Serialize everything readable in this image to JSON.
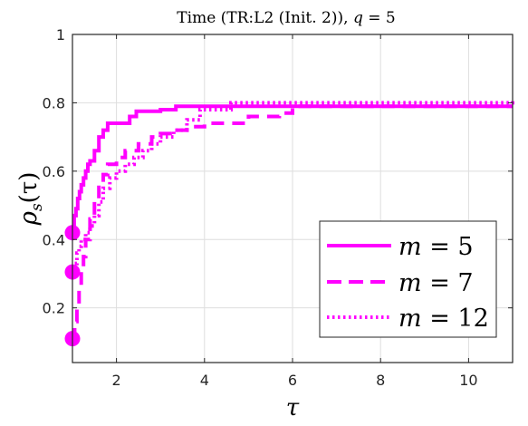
{
  "chart_data": {
    "type": "line",
    "title_parts": {
      "prefix": "Time (TR:L2 (Init. 2)), ",
      "var": "q",
      "suffix": " = 5"
    },
    "xlabel": "τ",
    "ylabel_parts": {
      "base": "ρ",
      "sub": "s",
      "arg": "(τ)"
    },
    "xlim": [
      1,
      11
    ],
    "ylim": [
      0.04,
      1.0
    ],
    "xticks": [
      2,
      4,
      6,
      8,
      10
    ],
    "xtick_labels": [
      "2",
      "4",
      "6",
      "8",
      "10"
    ],
    "yticks": [
      0.2,
      0.4,
      0.6,
      0.8,
      1.0
    ],
    "ytick_labels": [
      "0.2",
      "0.4",
      "0.6",
      "0.8",
      "1"
    ],
    "grid": true,
    "legend_position": "bottom-right",
    "color": "#ff00ff",
    "series": [
      {
        "name": "m = 5",
        "name_var": "m",
        "name_value": "5",
        "dash": "solid",
        "start_marker": 0.42,
        "x": [
          1.0,
          1.04,
          1.08,
          1.12,
          1.16,
          1.2,
          1.25,
          1.3,
          1.35,
          1.4,
          1.5,
          1.6,
          1.7,
          1.8,
          2.0,
          2.3,
          2.45,
          3.0,
          3.35,
          11.0
        ],
        "y": [
          0.42,
          0.47,
          0.49,
          0.52,
          0.54,
          0.56,
          0.58,
          0.6,
          0.62,
          0.63,
          0.66,
          0.7,
          0.72,
          0.74,
          0.74,
          0.76,
          0.775,
          0.78,
          0.79,
          0.79
        ]
      },
      {
        "name": "m = 7",
        "name_var": "m",
        "name_value": "7",
        "dash": "dashed",
        "start_marker": 0.11,
        "x": [
          1.0,
          1.05,
          1.1,
          1.15,
          1.2,
          1.25,
          1.3,
          1.4,
          1.5,
          1.6,
          1.7,
          1.8,
          2.0,
          2.2,
          2.5,
          2.8,
          3.0,
          3.3,
          3.6,
          4.0,
          5.0,
          5.7,
          6.0,
          11.0
        ],
        "y": [
          0.11,
          0.16,
          0.21,
          0.26,
          0.31,
          0.35,
          0.4,
          0.46,
          0.52,
          0.56,
          0.59,
          0.62,
          0.64,
          0.66,
          0.68,
          0.7,
          0.71,
          0.72,
          0.73,
          0.74,
          0.76,
          0.77,
          0.79,
          0.79
        ]
      },
      {
        "name": "m = 12",
        "name_var": "m",
        "name_value": "12",
        "dash": "dotted",
        "start_marker": 0.305,
        "x": [
          1.0,
          1.05,
          1.1,
          1.15,
          1.2,
          1.3,
          1.4,
          1.5,
          1.6,
          1.7,
          1.85,
          2.0,
          2.2,
          2.4,
          2.6,
          2.8,
          3.0,
          3.3,
          3.6,
          3.9,
          4.6,
          11.0
        ],
        "y": [
          0.305,
          0.33,
          0.36,
          0.38,
          0.4,
          0.42,
          0.44,
          0.47,
          0.51,
          0.55,
          0.58,
          0.6,
          0.62,
          0.64,
          0.66,
          0.68,
          0.7,
          0.72,
          0.75,
          0.78,
          0.8,
          0.805
        ]
      }
    ]
  }
}
